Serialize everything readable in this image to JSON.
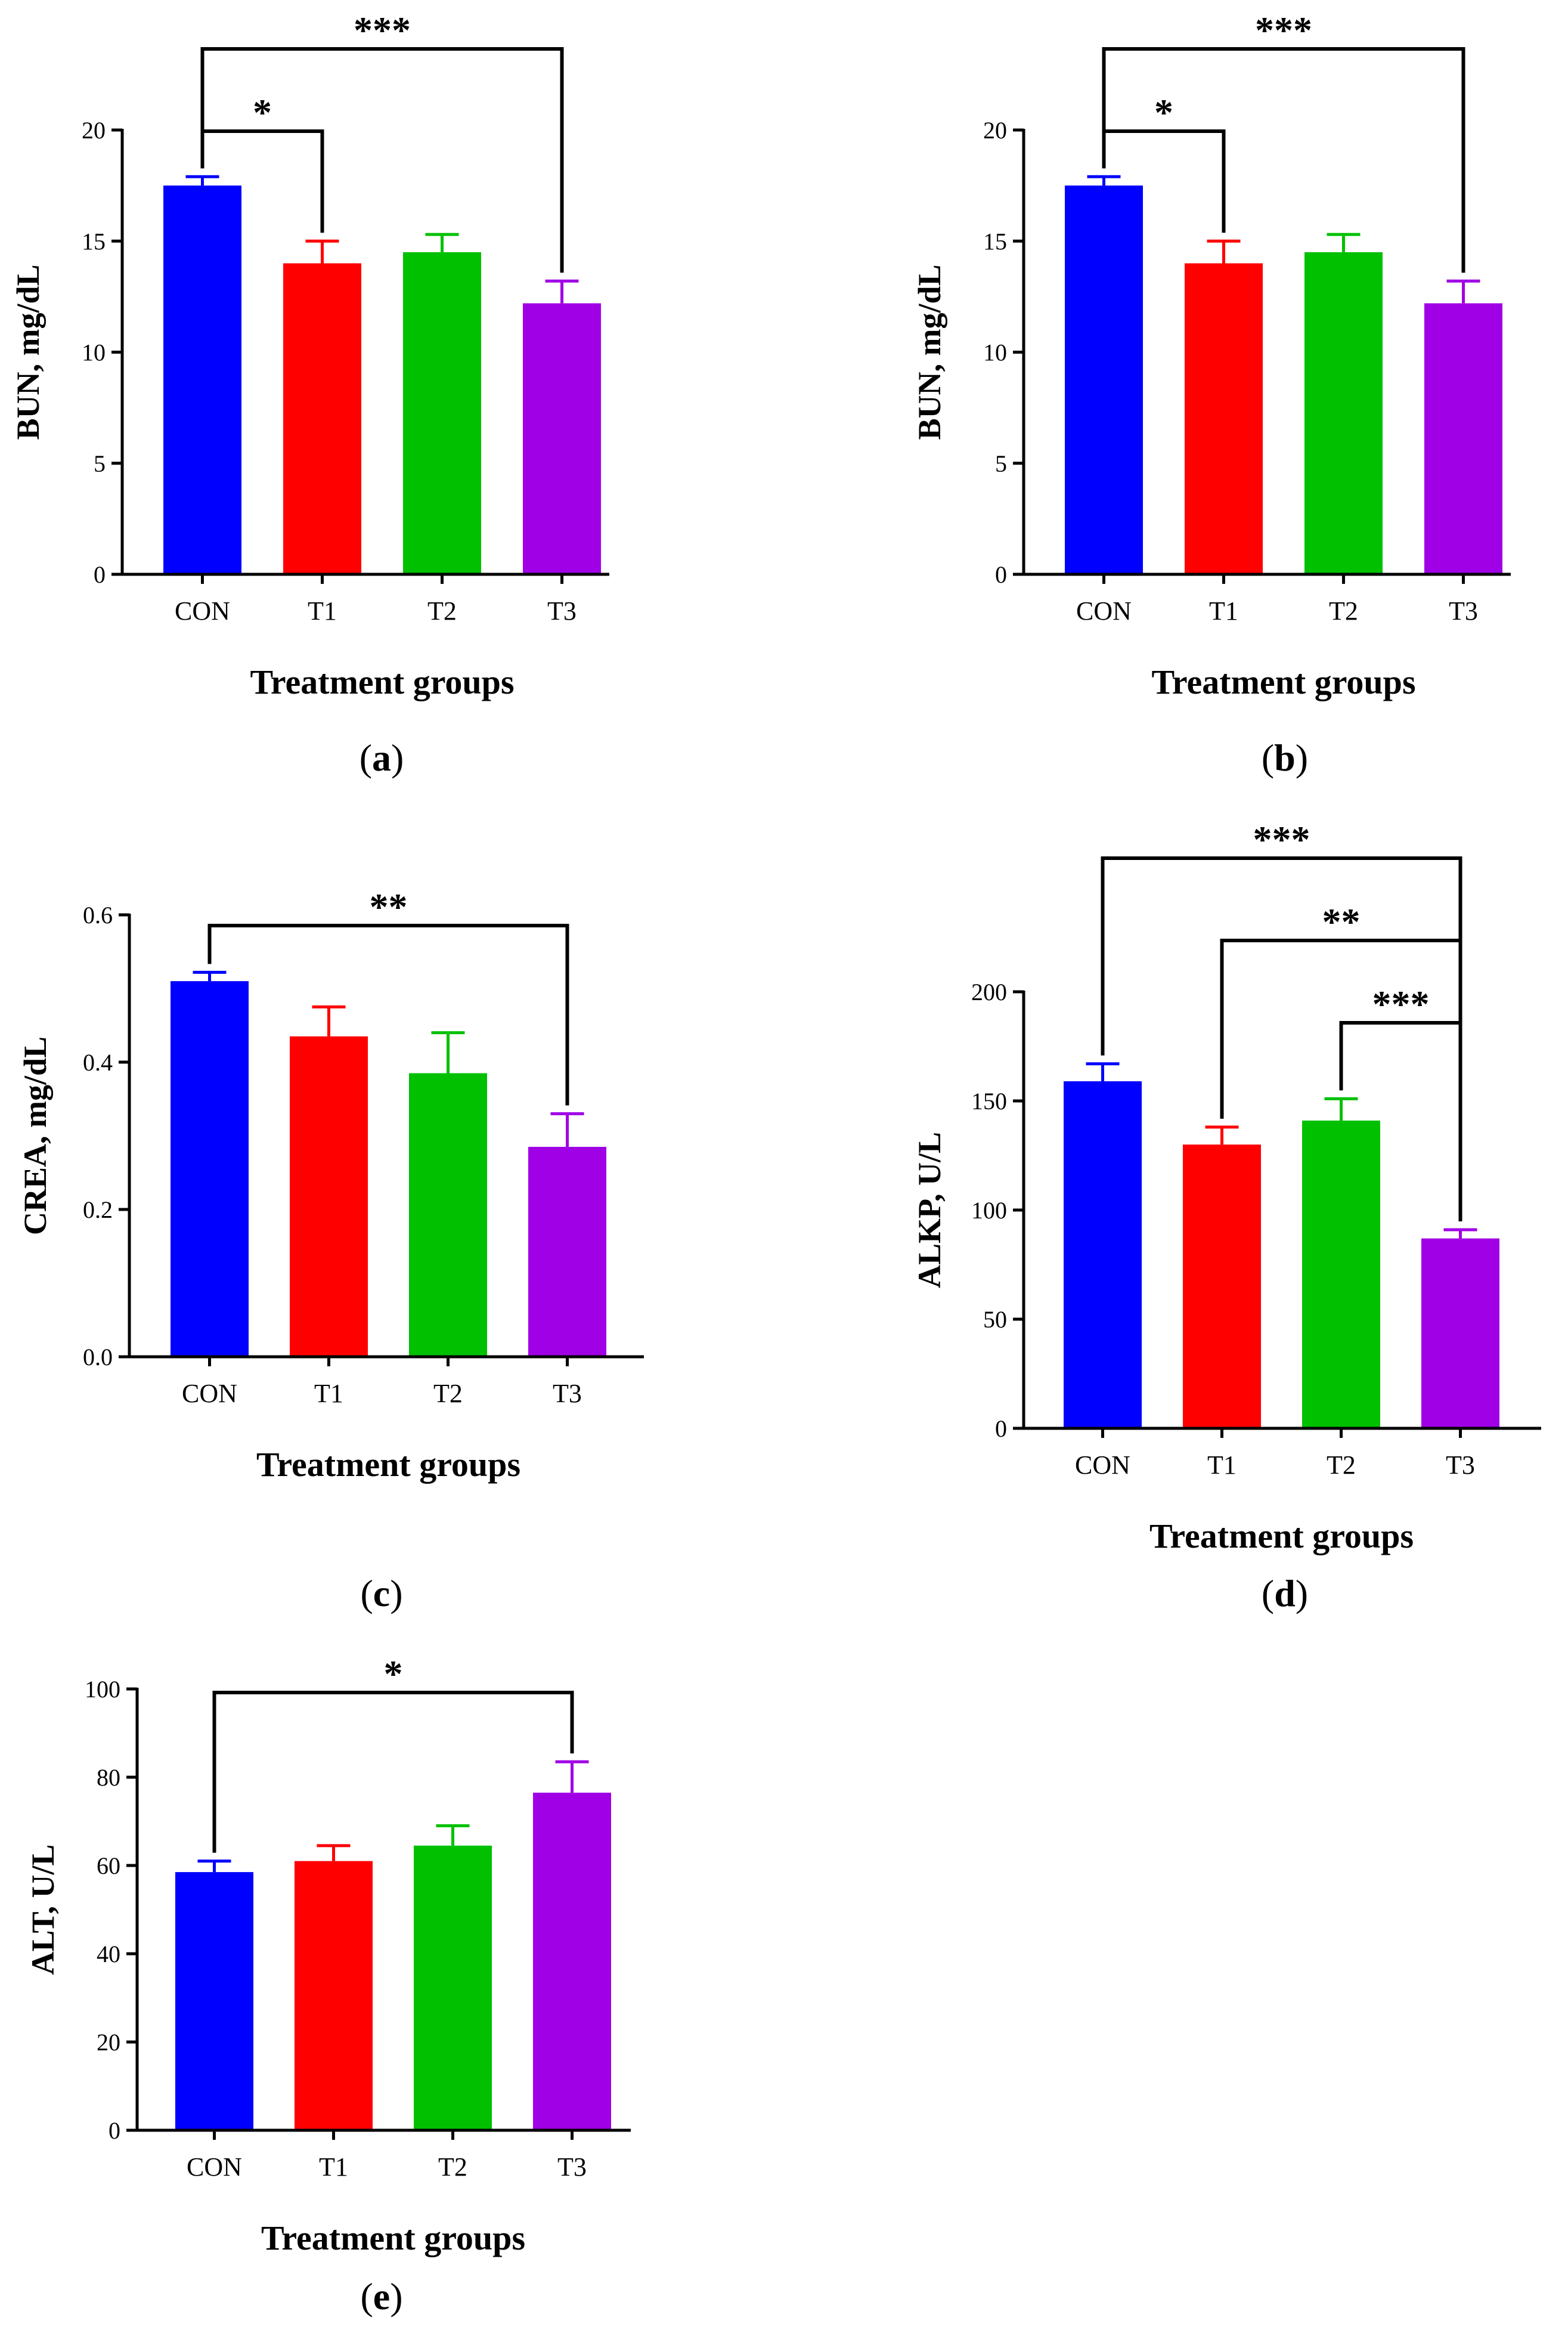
{
  "figure": {
    "x_axis_title": "Treatment groups",
    "colors": {
      "CON": "#0000ff",
      "T1": "#ff0000",
      "T2": "#00c000",
      "T3": "#a000e6",
      "axis": "#000000"
    }
  },
  "chart_data": [
    {
      "panel": "a",
      "label_prefix": "(",
      "label_letter": "a",
      "label_suffix": ")",
      "type": "bar",
      "categories": [
        "CON",
        "T1",
        "T2",
        "T3"
      ],
      "values": [
        17.5,
        14.0,
        14.5,
        12.2
      ],
      "errors": [
        0.4,
        1.0,
        0.8,
        1.0
      ],
      "ylabel": "BUN, mg/dL",
      "xlabel": "Treatment groups",
      "ylim": [
        0,
        20
      ],
      "yticks": [
        0,
        5,
        10,
        15,
        20
      ],
      "ytick_labels": [
        "0",
        "5",
        "10",
        "15",
        "20"
      ],
      "significance": [
        {
          "from": "CON",
          "to": "T3",
          "label": "***",
          "level": 0
        },
        {
          "from": "CON",
          "to": "T1",
          "label": "*",
          "level": 1
        }
      ]
    },
    {
      "panel": "b",
      "label_prefix": "(",
      "label_letter": "b",
      "label_suffix": ")",
      "type": "bar",
      "categories": [
        "CON",
        "T1",
        "T2",
        "T3"
      ],
      "values": [
        17.5,
        14.0,
        14.5,
        12.2
      ],
      "errors": [
        0.4,
        1.0,
        0.8,
        1.0
      ],
      "ylabel": "BUN, mg/dL",
      "xlabel": "Treatment groups",
      "ylim": [
        0,
        20
      ],
      "yticks": [
        0,
        5,
        10,
        15,
        20
      ],
      "ytick_labels": [
        "0",
        "5",
        "10",
        "15",
        "20"
      ],
      "significance": [
        {
          "from": "CON",
          "to": "T3",
          "label": "***",
          "level": 0
        },
        {
          "from": "CON",
          "to": "T1",
          "label": "*",
          "level": 1
        }
      ]
    },
    {
      "panel": "c",
      "label_prefix": "(",
      "label_letter": "c",
      "label_suffix": ")",
      "type": "bar",
      "categories": [
        "CON",
        "T1",
        "T2",
        "T3"
      ],
      "values": [
        0.51,
        0.435,
        0.385,
        0.285
      ],
      "errors": [
        0.012,
        0.04,
        0.055,
        0.045
      ],
      "ylabel": "CREA, mg/dL",
      "xlabel": "Treatment groups",
      "ylim": [
        0,
        0.6
      ],
      "yticks": [
        0,
        0.2,
        0.4,
        0.6
      ],
      "ytick_labels": [
        "0.0",
        "0.2",
        "0.4",
        "0.6"
      ],
      "significance": [
        {
          "from": "CON",
          "to": "T3",
          "label": "**",
          "level": 0
        }
      ]
    },
    {
      "panel": "d",
      "label_prefix": "(",
      "label_letter": "d",
      "label_suffix": ")",
      "type": "bar",
      "categories": [
        "CON",
        "T1",
        "T2",
        "T3"
      ],
      "values": [
        159,
        130,
        141,
        87
      ],
      "errors": [
        8,
        8,
        10,
        4
      ],
      "ylabel": "ALKP, U/L",
      "xlabel": "Treatment groups",
      "ylim": [
        0,
        200
      ],
      "yticks": [
        0,
        50,
        100,
        150,
        200
      ],
      "ytick_labels": [
        "0",
        "50",
        "100",
        "150",
        "200"
      ],
      "significance": [
        {
          "from": "CON",
          "to": "T3",
          "label": "***",
          "level": 0
        },
        {
          "from": "T1",
          "to": "T3",
          "label": "**",
          "level": 1
        },
        {
          "from": "T2",
          "to": "T3",
          "label": "***",
          "level": 2
        }
      ]
    },
    {
      "panel": "e",
      "label_prefix": "(",
      "label_letter": "e",
      "label_suffix": ")",
      "type": "bar",
      "categories": [
        "CON",
        "T1",
        "T2",
        "T3"
      ],
      "values": [
        58.5,
        61,
        64.5,
        76.5
      ],
      "errors": [
        2.5,
        3.5,
        4.5,
        7
      ],
      "ylabel": "ALT, U/L",
      "xlabel": "Treatment groups",
      "ylim": [
        0,
        100
      ],
      "yticks": [
        0,
        20,
        40,
        60,
        80,
        100
      ],
      "ytick_labels": [
        "0",
        "20",
        "40",
        "60",
        "80",
        "100"
      ],
      "significance": [
        {
          "from": "CON",
          "to": "T3",
          "label": "*",
          "level": 0
        }
      ]
    }
  ]
}
